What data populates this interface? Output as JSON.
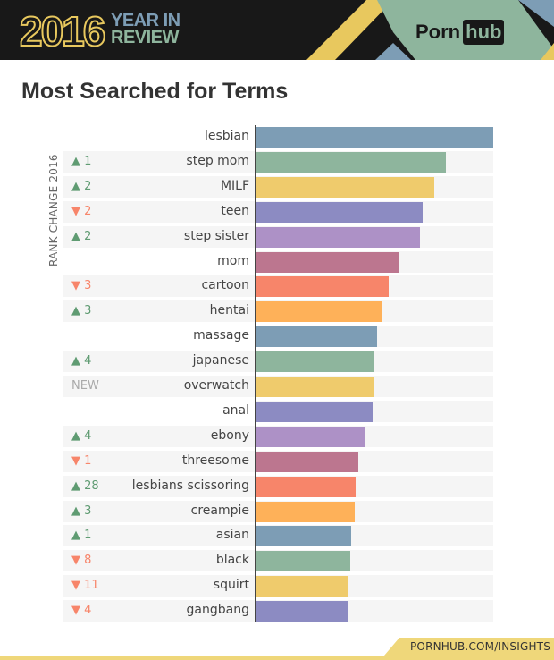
{
  "header": {
    "year": "2016",
    "line1": "YEAR IN",
    "line2": "REVIEW",
    "logo_left": "Porn",
    "logo_right": "hub"
  },
  "chart_data": {
    "type": "bar",
    "title": "Most Searched for Terms",
    "ylabel": "RANK CHANGE 2016",
    "orientation": "horizontal",
    "value_unit": "relative search volume (% of top term, estimated)",
    "categories": [
      "lesbian",
      "step mom",
      "MILF",
      "teen",
      "step sister",
      "mom",
      "cartoon",
      "hentai",
      "massage",
      "japanese",
      "overwatch",
      "anal",
      "ebony",
      "threesome",
      "lesbians scissoring",
      "creampie",
      "asian",
      "black",
      "squirt",
      "gangbang"
    ],
    "values": [
      100,
      80,
      75,
      70,
      69,
      60,
      56,
      53,
      51,
      49.5,
      49.5,
      49,
      46,
      43,
      42,
      41.5,
      40,
      39.5,
      39,
      38.5
    ],
    "rank_change": [
      null,
      {
        "dir": "up",
        "text": "1"
      },
      {
        "dir": "up",
        "text": "2"
      },
      {
        "dir": "down",
        "text": "2"
      },
      {
        "dir": "up",
        "text": "2"
      },
      null,
      {
        "dir": "down",
        "text": "3"
      },
      {
        "dir": "up",
        "text": "3"
      },
      null,
      {
        "dir": "up",
        "text": "4"
      },
      {
        "dir": "new",
        "text": "NEW"
      },
      null,
      {
        "dir": "up",
        "text": "4"
      },
      {
        "dir": "down",
        "text": "1"
      },
      {
        "dir": "up",
        "text": "28"
      },
      {
        "dir": "up",
        "text": "3"
      },
      {
        "dir": "up",
        "text": "1"
      },
      {
        "dir": "down",
        "text": "8"
      },
      {
        "dir": "down",
        "text": "11"
      },
      {
        "dir": "down",
        "text": "4"
      }
    ],
    "colors": [
      "#7d9db5",
      "#8eb59d",
      "#efcb6c",
      "#8c8bc2",
      "#ad91c6",
      "#bc768f",
      "#f7856a",
      "#feb159"
    ],
    "xlim": [
      0,
      100
    ]
  },
  "footer": {
    "link": "PORNHUB.COM/INSIGHTS"
  }
}
